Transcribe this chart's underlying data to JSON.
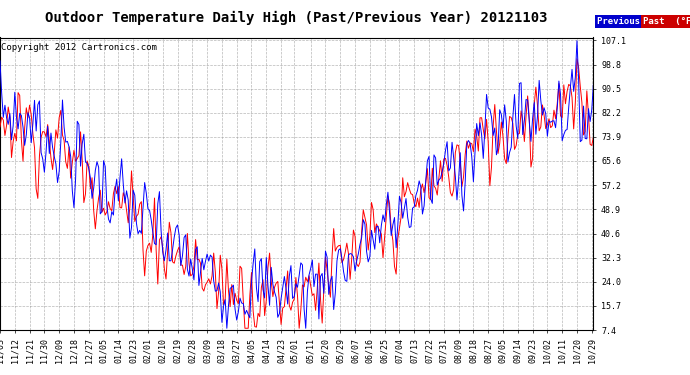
{
  "title": "Outdoor Temperature Daily High (Past/Previous Year) 20121103",
  "copyright": "Copyright 2012 Cartronics.com",
  "yticks": [
    7.4,
    15.7,
    24.0,
    32.3,
    40.6,
    48.9,
    57.2,
    65.6,
    73.9,
    82.2,
    90.5,
    98.8,
    107.1
  ],
  "ylim": [
    7.4,
    107.1
  ],
  "xtick_labels": [
    "11/03",
    "11/12",
    "11/21",
    "11/30",
    "12/09",
    "12/18",
    "12/27",
    "01/05",
    "01/14",
    "01/23",
    "02/01",
    "02/10",
    "02/19",
    "02/28",
    "03/09",
    "03/18",
    "03/27",
    "04/05",
    "04/14",
    "04/23",
    "05/01",
    "05/11",
    "05/20",
    "05/29",
    "06/07",
    "06/16",
    "06/25",
    "07/04",
    "07/13",
    "07/22",
    "07/31",
    "08/09",
    "08/18",
    "08/27",
    "09/05",
    "09/14",
    "09/23",
    "10/02",
    "10/11",
    "10/20",
    "10/29"
  ],
  "xtick_positions_days": [
    0,
    9,
    18,
    27,
    36,
    45,
    54,
    63,
    72,
    81,
    90,
    99,
    108,
    117,
    126,
    135,
    144,
    153,
    162,
    171,
    179,
    189,
    198,
    207,
    216,
    225,
    234,
    243,
    252,
    261,
    270,
    279,
    288,
    297,
    306,
    315,
    324,
    333,
    342,
    351,
    360
  ],
  "n_days": 362,
  "legend_previous_label": "Previous  (°F)",
  "legend_past_label": "Past  (°F)",
  "prev_line_color": "#0000ff",
  "past_line_color": "#ff0000",
  "prev_legend_bg": "#0000cc",
  "past_legend_bg": "#cc0000",
  "background_color": "#ffffff",
  "grid_color": "#999999",
  "title_fontsize": 10,
  "copyright_fontsize": 6.5,
  "tick_fontsize": 6,
  "seed": 7
}
